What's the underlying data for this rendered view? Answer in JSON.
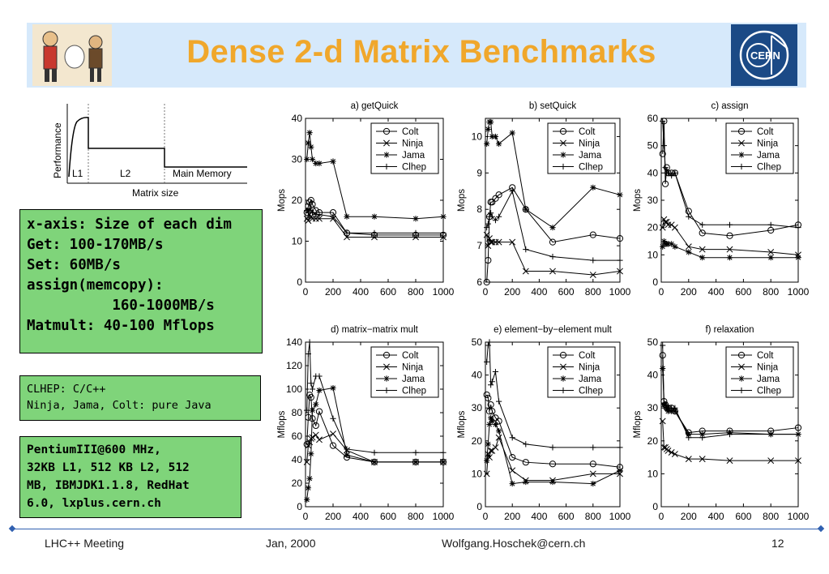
{
  "header": {
    "title": "Dense 2-d Matrix Benchmarks",
    "left_logo": "cartoon-figures-logo",
    "right_logo": "CERN"
  },
  "perf_diagram": {
    "ylabel": "Performance",
    "xlabel": "Matrix size",
    "regions": [
      "L1",
      "L2",
      "Main Memory"
    ]
  },
  "info_box_1": {
    "lines": [
      "x-axis: Size of each dim",
      "Get: 100-170MB/s",
      "Set: 60MB/s",
      "assign(memcopy):",
      "          160-1000MB/s",
      "Matmult: 40-100 Mflops"
    ]
  },
  "info_box_2": {
    "lines": [
      "CLHEP: C/C++",
      "Ninja, Jama, Colt: pure Java"
    ]
  },
  "info_box_3": {
    "lines": [
      "PentiumIII@600 MHz,",
      "32KB L1, 512 KB L2, 512",
      "MB, IBMJDK1.1.8, RedHat",
      "6.0, lxplus.cern.ch"
    ]
  },
  "footer": {
    "left": "LHC++ Meeting",
    "center": "Jan, 2000",
    "email": "Wolfgang.Hoschek@cern.ch",
    "page": "12"
  },
  "legend": [
    "Colt",
    "Ninja",
    "Jama",
    "Clhep"
  ],
  "chart_data": [
    {
      "type": "line",
      "title": "a) getQuick",
      "ylabel": "Mops",
      "xlim": [
        0,
        1000
      ],
      "ylim": [
        0,
        40
      ],
      "xticks": [
        0,
        200,
        400,
        600,
        800,
        1000
      ],
      "yticks": [
        0,
        10,
        20,
        30,
        40
      ],
      "series": [
        {
          "name": "Colt",
          "x": [
            10,
            20,
            30,
            40,
            50,
            75,
            100,
            200,
            300,
            500,
            800,
            1000
          ],
          "y": [
            17,
            18.5,
            19.5,
            20,
            19,
            17.5,
            17,
            17,
            12,
            11.5,
            11.5,
            11.5
          ]
        },
        {
          "name": "Ninja",
          "x": [
            10,
            20,
            30,
            40,
            50,
            75,
            100,
            200,
            300,
            500,
            800,
            1000
          ],
          "y": [
            15.5,
            15,
            16.5,
            16,
            15.5,
            15.5,
            15.5,
            15.5,
            11,
            11,
            11,
            11
          ]
        },
        {
          "name": "Jama",
          "x": [
            10,
            20,
            30,
            40,
            50,
            75,
            100,
            200,
            300,
            500,
            800,
            1000
          ],
          "y": [
            30,
            34,
            36.5,
            33,
            30,
            29,
            29,
            29.5,
            16,
            16,
            15.5,
            16
          ]
        },
        {
          "name": "Clhep",
          "x": [
            10,
            20,
            30,
            40,
            50,
            75,
            100,
            200,
            300,
            500,
            800,
            1000
          ],
          "y": [
            17.5,
            17,
            18,
            17.5,
            17,
            16.5,
            16.5,
            16,
            12,
            12,
            12,
            12
          ]
        }
      ]
    },
    {
      "type": "line",
      "title": "b) setQuick",
      "ylabel": "Mops",
      "xlim": [
        0,
        1000
      ],
      "ylim": [
        6,
        10.5
      ],
      "xticks": [
        0,
        200,
        400,
        600,
        800,
        1000
      ],
      "yticks": [
        6,
        7,
        8,
        9,
        10
      ],
      "series": [
        {
          "name": "Colt",
          "x": [
            10,
            20,
            30,
            40,
            50,
            75,
            100,
            200,
            300,
            500,
            800,
            1000
          ],
          "y": [
            5.8,
            6.6,
            7.8,
            8.2,
            8.2,
            8.3,
            8.4,
            8.6,
            8.0,
            7.1,
            7.3,
            7.2
          ]
        },
        {
          "name": "Ninja",
          "x": [
            10,
            20,
            30,
            40,
            50,
            75,
            100,
            200,
            300,
            500,
            800,
            1000
          ],
          "y": [
            7.3,
            7.0,
            7.2,
            7.1,
            7.1,
            7.1,
            7.1,
            7.1,
            6.3,
            6.3,
            6.2,
            6.3
          ]
        },
        {
          "name": "Jama",
          "x": [
            10,
            20,
            30,
            40,
            50,
            75,
            100,
            200,
            300,
            500,
            800,
            1000
          ],
          "y": [
            9.8,
            10.2,
            10.4,
            10.4,
            10.0,
            10.0,
            9.8,
            10.1,
            8.0,
            7.5,
            8.6,
            8.4
          ]
        },
        {
          "name": "Clhep",
          "x": [
            10,
            20,
            30,
            40,
            50,
            75,
            100,
            200,
            300,
            500,
            800,
            1000
          ],
          "y": [
            7.5,
            7.6,
            7.8,
            7.9,
            7.8,
            7.7,
            7.8,
            8.5,
            6.9,
            6.7,
            6.6,
            6.6
          ]
        }
      ]
    },
    {
      "type": "line",
      "title": "c) assign",
      "ylabel": "Mops",
      "xlim": [
        0,
        1000
      ],
      "ylim": [
        0,
        60
      ],
      "xticks": [
        0,
        200,
        400,
        600,
        800,
        1000
      ],
      "yticks": [
        0,
        10,
        20,
        30,
        40,
        50,
        60
      ],
      "series": [
        {
          "name": "Colt",
          "x": [
            10,
            20,
            30,
            40,
            50,
            75,
            100,
            200,
            300,
            500,
            800,
            1000
          ],
          "y": [
            47,
            59,
            36,
            42,
            40,
            40,
            40,
            26,
            18,
            17,
            19,
            21
          ]
        },
        {
          "name": "Ninja",
          "x": [
            10,
            20,
            30,
            40,
            50,
            75,
            100,
            200,
            300,
            500,
            800,
            1000
          ],
          "y": [
            20,
            23,
            22,
            22,
            21,
            21,
            20,
            13,
            12,
            12,
            11,
            10
          ]
        },
        {
          "name": "Jama",
          "x": [
            10,
            20,
            30,
            40,
            50,
            75,
            100,
            200,
            300,
            500,
            800,
            1000
          ],
          "y": [
            13,
            15,
            14,
            14,
            14,
            14,
            13,
            11,
            9,
            9,
            9,
            9
          ]
        },
        {
          "name": "Clhep",
          "x": [
            10,
            20,
            30,
            40,
            50,
            75,
            100,
            200,
            300,
            500,
            800,
            1000
          ],
          "y": [
            59,
            50,
            42,
            40,
            40,
            39,
            40,
            24,
            21,
            21,
            21,
            20
          ]
        }
      ]
    },
    {
      "type": "line",
      "title": "d) matrix−matrix mult",
      "ylabel": "Mflops",
      "xlim": [
        0,
        1000
      ],
      "ylim": [
        0,
        140
      ],
      "xticks": [
        0,
        200,
        400,
        600,
        800,
        1000
      ],
      "yticks": [
        0,
        20,
        40,
        60,
        80,
        100,
        120,
        140
      ],
      "series": [
        {
          "name": "Colt",
          "x": [
            10,
            20,
            30,
            40,
            50,
            75,
            100,
            200,
            300,
            500,
            800,
            1000
          ],
          "y": [
            53,
            76,
            95,
            93,
            75,
            69,
            81,
            52,
            42,
            38,
            38,
            38
          ]
        },
        {
          "name": "Ninja",
          "x": [
            10,
            20,
            30,
            40,
            50,
            75,
            100,
            200,
            300,
            500,
            800,
            1000
          ],
          "y": [
            38,
            52,
            55,
            58,
            59,
            61,
            57,
            62,
            48,
            38,
            38,
            38
          ]
        },
        {
          "name": "Jama",
          "x": [
            10,
            20,
            30,
            40,
            50,
            75,
            100,
            200,
            300,
            500,
            800,
            1000
          ],
          "y": [
            6,
            16,
            24,
            45,
            82,
            87,
            99,
            101,
            44,
            38,
            38,
            38
          ]
        },
        {
          "name": "Clhep",
          "x": [
            10,
            20,
            30,
            40,
            50,
            75,
            100,
            200,
            300,
            500,
            800,
            1000
          ],
          "y": [
            82,
            130,
            140,
            105,
            100,
            111,
            111,
            75,
            49,
            46,
            46,
            46
          ]
        }
      ]
    },
    {
      "type": "line",
      "title": "e) element−by−element mult",
      "ylabel": "Mflops",
      "xlim": [
        0,
        1000
      ],
      "ylim": [
        0,
        50
      ],
      "xticks": [
        0,
        200,
        400,
        600,
        800,
        1000
      ],
      "yticks": [
        0,
        10,
        20,
        30,
        40,
        50
      ],
      "series": [
        {
          "name": "Colt",
          "x": [
            10,
            20,
            30,
            40,
            50,
            75,
            100,
            200,
            300,
            500,
            800,
            1000
          ],
          "y": [
            34,
            33,
            29,
            31,
            29,
            27,
            26,
            15,
            13.5,
            13,
            13,
            12
          ]
        },
        {
          "name": "Ninja",
          "x": [
            10,
            20,
            30,
            40,
            50,
            75,
            100,
            200,
            300,
            500,
            800,
            1000
          ],
          "y": [
            10,
            16,
            15,
            17,
            17,
            18,
            21,
            11,
            8,
            8,
            10,
            10
          ]
        },
        {
          "name": "Jama",
          "x": [
            10,
            20,
            30,
            40,
            50,
            75,
            100,
            200,
            300,
            500,
            800,
            1000
          ],
          "y": [
            14,
            19,
            25,
            27,
            26,
            25,
            23,
            7,
            7.5,
            7.5,
            7,
            11
          ]
        },
        {
          "name": "Clhep",
          "x": [
            10,
            20,
            30,
            40,
            50,
            75,
            100,
            200,
            300,
            500,
            800,
            1000
          ],
          "y": [
            44,
            49,
            50,
            37,
            38,
            41,
            32,
            21,
            19,
            18,
            18,
            18
          ]
        }
      ]
    },
    {
      "type": "line",
      "title": "f) relaxation",
      "ylabel": "Mflops",
      "xlim": [
        0,
        1000
      ],
      "ylim": [
        0,
        50
      ],
      "xticks": [
        0,
        200,
        400,
        600,
        800,
        1000
      ],
      "yticks": [
        0,
        10,
        20,
        30,
        40,
        50
      ],
      "series": [
        {
          "name": "Colt",
          "x": [
            10,
            20,
            30,
            40,
            50,
            75,
            100,
            200,
            300,
            500,
            800,
            1000
          ],
          "y": [
            46,
            32,
            31,
            30,
            30,
            30,
            29,
            22.5,
            23,
            23,
            23,
            24
          ]
        },
        {
          "name": "Ninja",
          "x": [
            10,
            20,
            30,
            40,
            50,
            75,
            100,
            200,
            300,
            500,
            800,
            1000
          ],
          "y": [
            26,
            18,
            18,
            17.5,
            17,
            16.5,
            16,
            14.5,
            14.5,
            14,
            14,
            14
          ]
        },
        {
          "name": "Jama",
          "x": [
            10,
            20,
            30,
            40,
            50,
            75,
            100,
            200,
            300,
            500,
            800,
            1000
          ],
          "y": [
            42,
            31,
            31,
            30,
            29,
            29,
            29,
            22,
            22,
            22.5,
            22,
            22
          ]
        },
        {
          "name": "Clhep",
          "x": [
            10,
            20,
            30,
            40,
            50,
            75,
            100,
            200,
            300,
            500,
            800,
            1000
          ],
          "y": [
            49,
            31,
            31,
            30,
            30,
            30,
            30,
            21,
            21,
            22,
            22,
            22
          ]
        }
      ]
    }
  ]
}
